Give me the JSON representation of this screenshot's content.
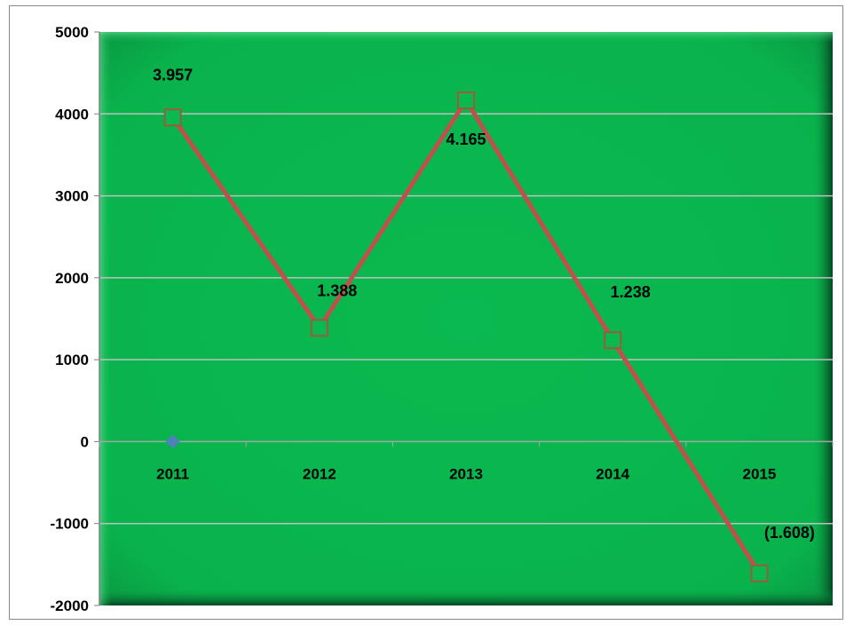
{
  "chart_data": {
    "type": "line",
    "categories": [
      "2011",
      "2012",
      "2013",
      "2014",
      "2015"
    ],
    "series": [
      {
        "values": [
          3957,
          1388,
          4165,
          1238,
          -1608
        ],
        "labels": [
          "3.957",
          "1.388",
          "4.165",
          "1.238",
          "(1.608)"
        ],
        "color": "#c0504d",
        "marker": "square"
      },
      {
        "values": [
          0,
          null,
          null,
          null,
          null
        ],
        "color": "#4f81bd",
        "marker": "diamond"
      }
    ],
    "ylim": [
      -2000,
      5000
    ],
    "yticks": [
      5000,
      4000,
      3000,
      2000,
      1000,
      0,
      -1000,
      -2000
    ],
    "ytick_labels": [
      "5000",
      "4000",
      "3000",
      "2000",
      "1000",
      "0",
      "-1000",
      "-2000"
    ],
    "grid": true,
    "legend": "none",
    "plot_background": "#0ab94f",
    "plot_background_edge": "#05532a",
    "gridline_color": "#bfbfbf"
  }
}
